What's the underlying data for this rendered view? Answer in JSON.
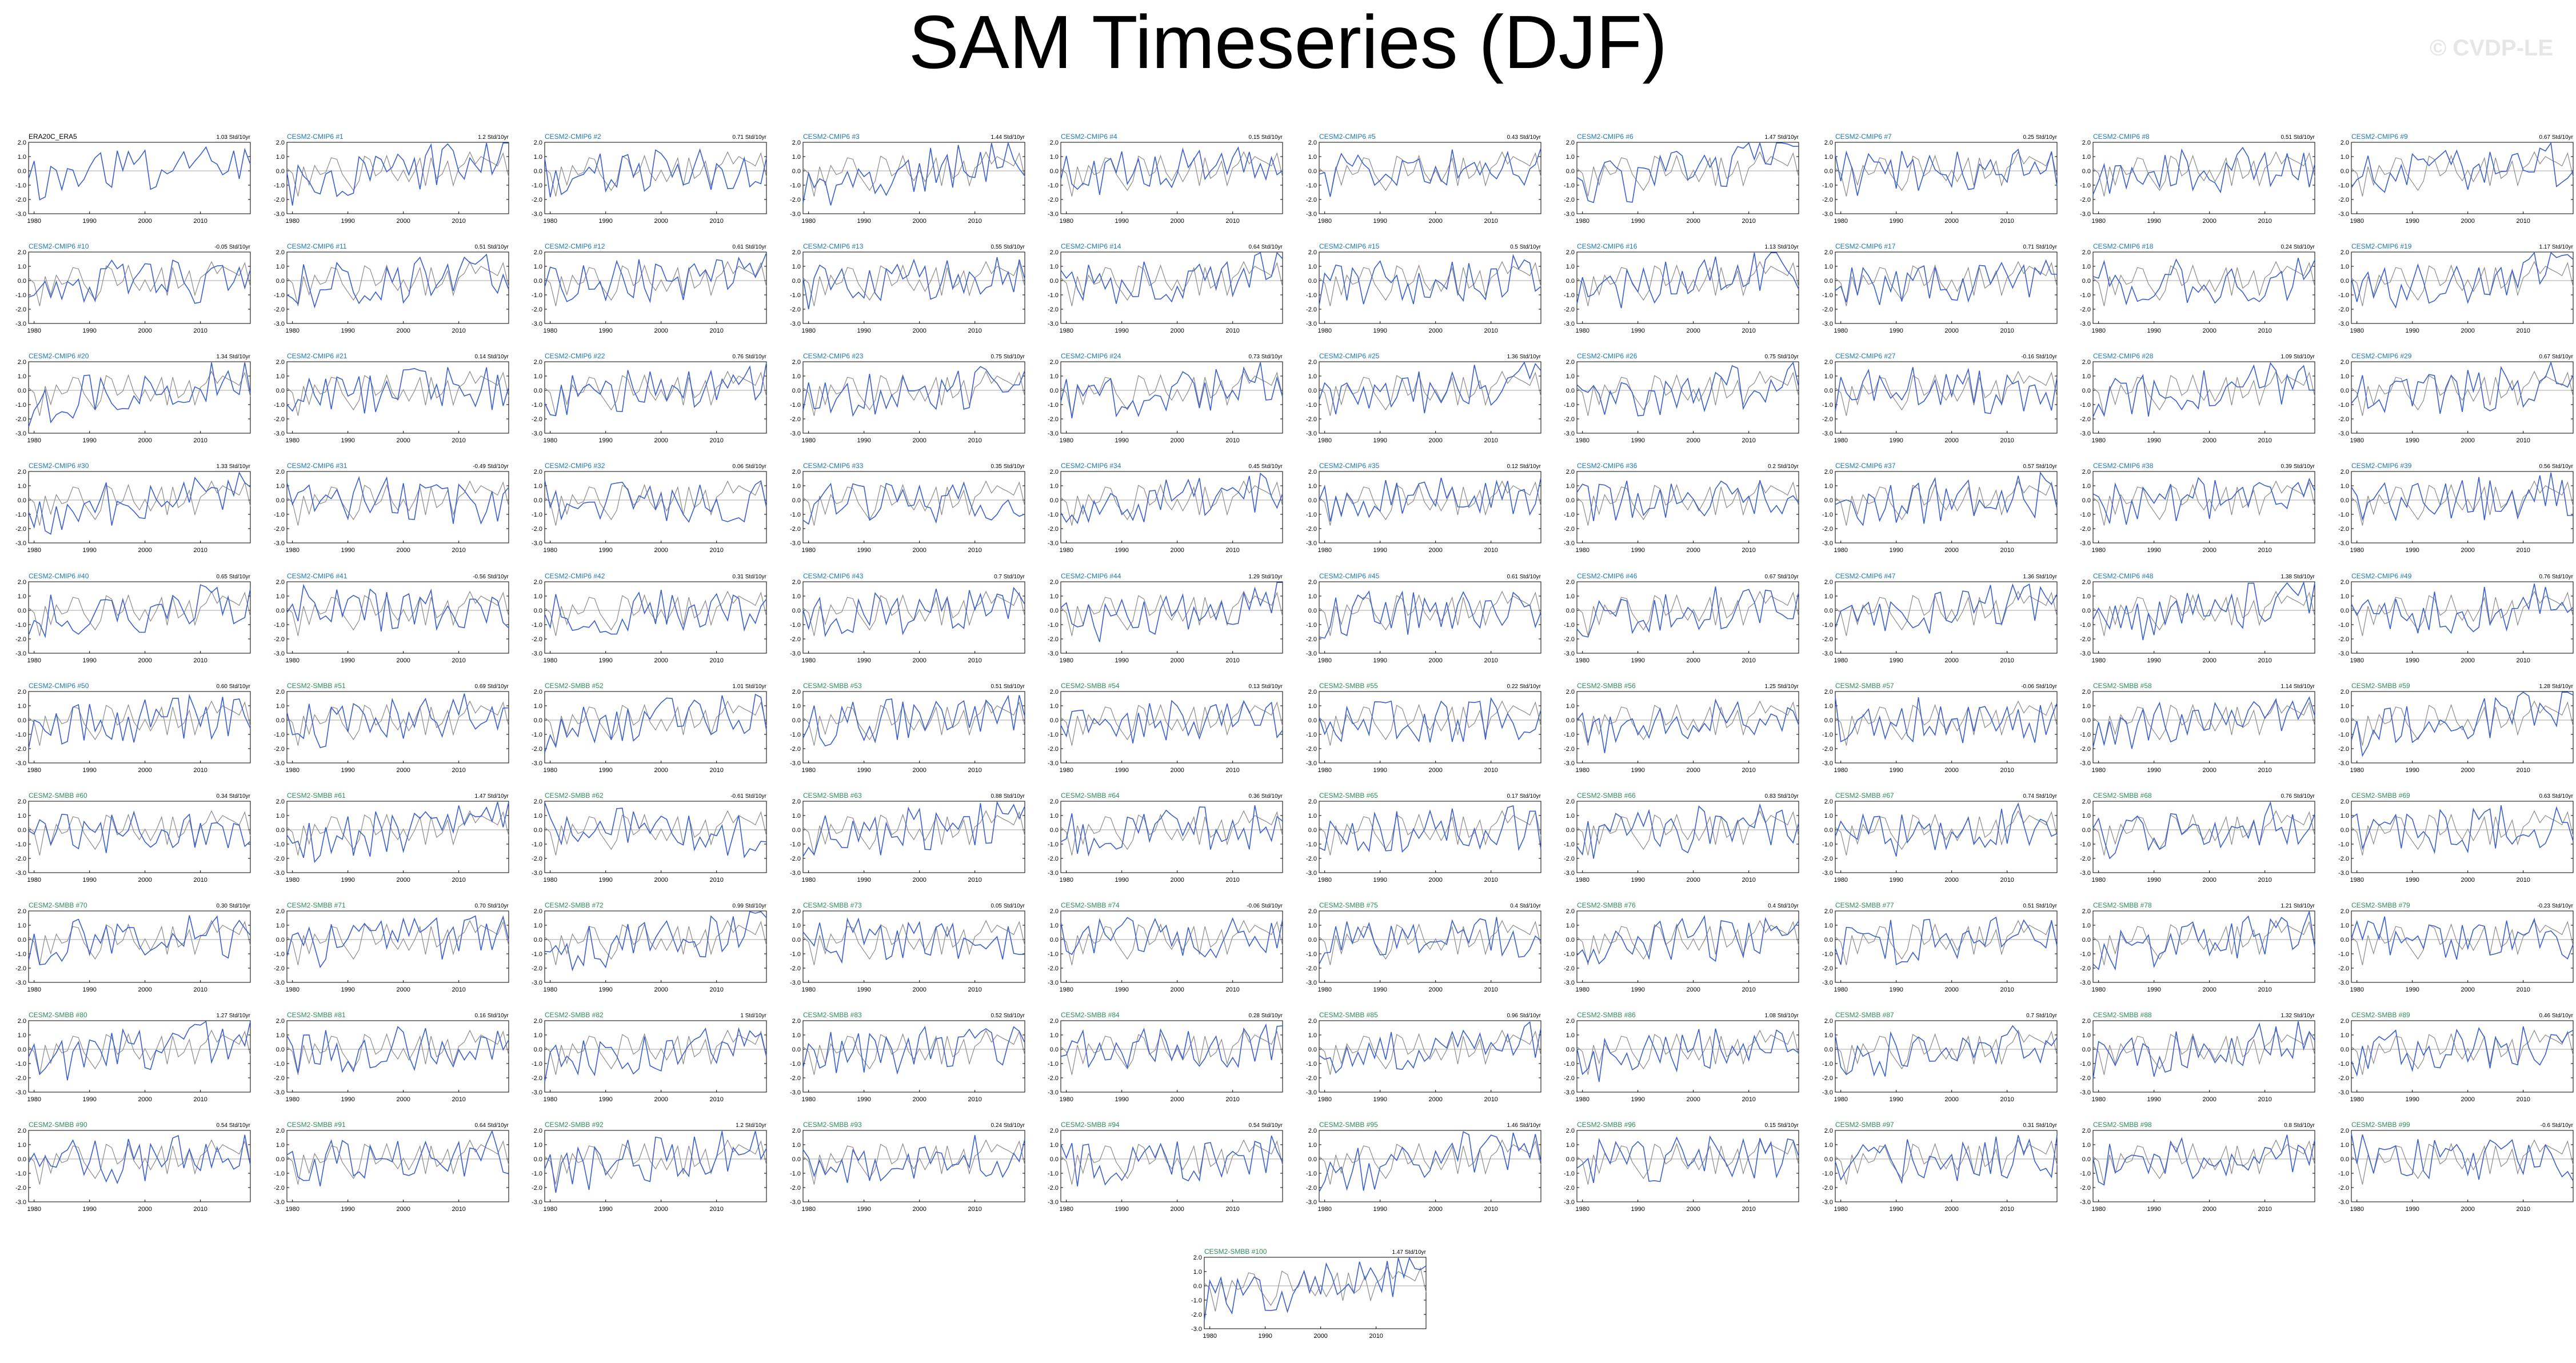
{
  "title": "SAM Timeseries (DJF)",
  "watermark": "© CVDP-LE",
  "colors": {
    "obs": "#000000",
    "model": "#3a5fcd",
    "reference": "#8a8a8a",
    "cmip6_title": "#1f78b4",
    "smbb_title": "#2e8b57"
  },
  "chart_data": {
    "type": "line",
    "x_range": [
      1979,
      2019
    ],
    "x_ticks": [
      "1980",
      "1990",
      "2000",
      "2010"
    ],
    "y_ticks": [
      "2.0",
      "1.0",
      "0.0",
      "-1.0",
      "-2.0",
      "-3.0"
    ],
    "ylim": [
      -3.0,
      2.0
    ],
    "trend_units": "Std/10yr",
    "panels": [
      {
        "label": "ERA20C_ERA5",
        "trend": "1.03 Std/10yr"
      },
      {
        "label": "CESM2-CMIP6 #1",
        "trend": "1.2 Std/10yr"
      },
      {
        "label": "CESM2-CMIP6 #2",
        "trend": "0.71 Std/10yr"
      },
      {
        "label": "CESM2-CMIP6 #3",
        "trend": "1.44 Std/10yr"
      },
      {
        "label": "CESM2-CMIP6 #4",
        "trend": "0.15 Std/10yr"
      },
      {
        "label": "CESM2-CMIP6 #5",
        "trend": "0.43 Std/10yr"
      },
      {
        "label": "CESM2-CMIP6 #6",
        "trend": "1.47 Std/10yr"
      },
      {
        "label": "CESM2-CMIP6 #7",
        "trend": "0.25 Std/10yr"
      },
      {
        "label": "CESM2-CMIP6 #8",
        "trend": "0.51 Std/10yr"
      },
      {
        "label": "CESM2-CMIP6 #9",
        "trend": "0.67 Std/10yr"
      },
      {
        "label": "CESM2-CMIP6 #10",
        "trend": "-0.05 Std/10yr"
      },
      {
        "label": "CESM2-CMIP6 #11",
        "trend": "0.51 Std/10yr"
      },
      {
        "label": "CESM2-CMIP6 #12",
        "trend": "0.61 Std/10yr"
      },
      {
        "label": "CESM2-CMIP6 #13",
        "trend": "0.55 Std/10yr"
      },
      {
        "label": "CESM2-CMIP6 #14",
        "trend": "0.64 Std/10yr"
      },
      {
        "label": "CESM2-CMIP6 #15",
        "trend": "0.5 Std/10yr"
      },
      {
        "label": "CESM2-CMIP6 #16",
        "trend": "1.13 Std/10yr"
      },
      {
        "label": "CESM2-CMIP6 #17",
        "trend": "0.71 Std/10yr"
      },
      {
        "label": "CESM2-CMIP6 #18",
        "trend": "0.24 Std/10yr"
      },
      {
        "label": "CESM2-CMIP6 #19",
        "trend": "1.17 Std/10yr"
      },
      {
        "label": "CESM2-CMIP6 #20",
        "trend": "1.34 Std/10yr"
      },
      {
        "label": "CESM2-CMIP6 #21",
        "trend": "0.14 Std/10yr"
      },
      {
        "label": "CESM2-CMIP6 #22",
        "trend": "0.76 Std/10yr"
      },
      {
        "label": "CESM2-CMIP6 #23",
        "trend": "0.75 Std/10yr"
      },
      {
        "label": "CESM2-CMIP6 #24",
        "trend": "0.73 Std/10yr"
      },
      {
        "label": "CESM2-CMIP6 #25",
        "trend": "1.36 Std/10yr"
      },
      {
        "label": "CESM2-CMIP6 #26",
        "trend": "0.75 Std/10yr"
      },
      {
        "label": "CESM2-CMIP6 #27",
        "trend": "-0.16 Std/10yr"
      },
      {
        "label": "CESM2-CMIP6 #28",
        "trend": "1.09 Std/10yr"
      },
      {
        "label": "CESM2-CMIP6 #29",
        "trend": "0.67 Std/10yr"
      },
      {
        "label": "CESM2-CMIP6 #30",
        "trend": "1.33 Std/10yr"
      },
      {
        "label": "CESM2-CMIP6 #31",
        "trend": "-0.49 Std/10yr"
      },
      {
        "label": "CESM2-CMIP6 #32",
        "trend": "0.06 Std/10yr"
      },
      {
        "label": "CESM2-CMIP6 #33",
        "trend": "0.35 Std/10yr"
      },
      {
        "label": "CESM2-CMIP6 #34",
        "trend": "0.45 Std/10yr"
      },
      {
        "label": "CESM2-CMIP6 #35",
        "trend": "0.12 Std/10yr"
      },
      {
        "label": "CESM2-CMIP6 #36",
        "trend": "0.2 Std/10yr"
      },
      {
        "label": "CESM2-CMIP6 #37",
        "trend": "0.57 Std/10yr"
      },
      {
        "label": "CESM2-CMIP6 #38",
        "trend": "0.39 Std/10yr"
      },
      {
        "label": "CESM2-CMIP6 #39",
        "trend": "0.56 Std/10yr"
      },
      {
        "label": "CESM2-CMIP6 #40",
        "trend": "0.65 Std/10yr"
      },
      {
        "label": "CESM2-CMIP6 #41",
        "trend": "-0.56 Std/10yr"
      },
      {
        "label": "CESM2-CMIP6 #42",
        "trend": "0.31 Std/10yr"
      },
      {
        "label": "CESM2-CMIP6 #43",
        "trend": "0.7 Std/10yr"
      },
      {
        "label": "CESM2-CMIP6 #44",
        "trend": "1.29 Std/10yr"
      },
      {
        "label": "CESM2-CMIP6 #45",
        "trend": "0.61 Std/10yr"
      },
      {
        "label": "CESM2-CMIP6 #46",
        "trend": "0.67 Std/10yr"
      },
      {
        "label": "CESM2-CMIP6 #47",
        "trend": "1.36 Std/10yr"
      },
      {
        "label": "CESM2-CMIP6 #48",
        "trend": "1.38 Std/10yr"
      },
      {
        "label": "CESM2-CMIP6 #49",
        "trend": "0.76 Std/10yr"
      },
      {
        "label": "CESM2-CMIP6 #50",
        "trend": "0.60 Std/10yr"
      },
      {
        "label": "CESM2-SMBB #51",
        "trend": "0.69 Std/10yr"
      },
      {
        "label": "CESM2-SMBB #52",
        "trend": "1.01 Std/10yr"
      },
      {
        "label": "CESM2-SMBB #53",
        "trend": "0.51 Std/10yr"
      },
      {
        "label": "CESM2-SMBB #54",
        "trend": "0.13 Std/10yr"
      },
      {
        "label": "CESM2-SMBB #55",
        "trend": "0.22 Std/10yr"
      },
      {
        "label": "CESM2-SMBB #56",
        "trend": "1.25 Std/10yr"
      },
      {
        "label": "CESM2-SMBB #57",
        "trend": "-0.06 Std/10yr"
      },
      {
        "label": "CESM2-SMBB #58",
        "trend": "1.14 Std/10yr"
      },
      {
        "label": "CESM2-SMBB #59",
        "trend": "1.28 Std/10yr"
      },
      {
        "label": "CESM2-SMBB #60",
        "trend": "0.34 Std/10yr"
      },
      {
        "label": "CESM2-SMBB #61",
        "trend": "1.47 Std/10yr"
      },
      {
        "label": "CESM2-SMBB #62",
        "trend": "-0.61 Std/10yr"
      },
      {
        "label": "CESM2-SMBB #63",
        "trend": "0.88 Std/10yr"
      },
      {
        "label": "CESM2-SMBB #64",
        "trend": "0.36 Std/10yr"
      },
      {
        "label": "CESM2-SMBB #65",
        "trend": "0.17 Std/10yr"
      },
      {
        "label": "CESM2-SMBB #66",
        "trend": "0.83 Std/10yr"
      },
      {
        "label": "CESM2-SMBB #67",
        "trend": "0.74 Std/10yr"
      },
      {
        "label": "CESM2-SMBB #68",
        "trend": "0.76 Std/10yr"
      },
      {
        "label": "CESM2-SMBB #69",
        "trend": "0.63 Std/10yr"
      },
      {
        "label": "CESM2-SMBB #70",
        "trend": "0.30 Std/10yr"
      },
      {
        "label": "CESM2-SMBB #71",
        "trend": "0.70 Std/10yr"
      },
      {
        "label": "CESM2-SMBB #72",
        "trend": "0.99 Std/10yr"
      },
      {
        "label": "CESM2-SMBB #73",
        "trend": "0.05 Std/10yr"
      },
      {
        "label": "CESM2-SMBB #74",
        "trend": "-0.06 Std/10yr"
      },
      {
        "label": "CESM2-SMBB #75",
        "trend": "0.4 Std/10yr"
      },
      {
        "label": "CESM2-SMBB #76",
        "trend": "0.4 Std/10yr"
      },
      {
        "label": "CESM2-SMBB #77",
        "trend": "0.51 Std/10yr"
      },
      {
        "label": "CESM2-SMBB #78",
        "trend": "1.21 Std/10yr"
      },
      {
        "label": "CESM2-SMBB #79",
        "trend": "-0.23 Std/10yr"
      },
      {
        "label": "CESM2-SMBB #80",
        "trend": "1.27 Std/10yr"
      },
      {
        "label": "CESM2-SMBB #81",
        "trend": "0.16 Std/10yr"
      },
      {
        "label": "CESM2-SMBB #82",
        "trend": "1 Std/10yr"
      },
      {
        "label": "CESM2-SMBB #83",
        "trend": "0.52 Std/10yr"
      },
      {
        "label": "CESM2-SMBB #84",
        "trend": "0.28 Std/10yr"
      },
      {
        "label": "CESM2-SMBB #85",
        "trend": "0.96 Std/10yr"
      },
      {
        "label": "CESM2-SMBB #86",
        "trend": "1.08 Std/10yr"
      },
      {
        "label": "CESM2-SMBB #87",
        "trend": "0.7 Std/10yr"
      },
      {
        "label": "CESM2-SMBB #88",
        "trend": "1.32 Std/10yr"
      },
      {
        "label": "CESM2-SMBB #89",
        "trend": "0.46 Std/10yr"
      },
      {
        "label": "CESM2-SMBB #90",
        "trend": "0.54 Std/10yr"
      },
      {
        "label": "CESM2-SMBB #91",
        "trend": "0.64 Std/10yr"
      },
      {
        "label": "CESM2-SMBB #92",
        "trend": "1.2 Std/10yr"
      },
      {
        "label": "CESM2-SMBB #93",
        "trend": "0.24 Std/10yr"
      },
      {
        "label": "CESM2-SMBB #94",
        "trend": "0.54 Std/10yr"
      },
      {
        "label": "CESM2-SMBB #95",
        "trend": "1.46 Std/10yr"
      },
      {
        "label": "CESM2-SMBB #96",
        "trend": "0.15 Std/10yr"
      },
      {
        "label": "CESM2-SMBB #97",
        "trend": "0.31 Std/10yr"
      },
      {
        "label": "CESM2-SMBB #98",
        "trend": "0.8 Std/10yr"
      },
      {
        "label": "CESM2-SMBB #99",
        "trend": "-0.6 Std/10yr"
      },
      {
        "label": "CESM2-SMBB #100",
        "trend": "1.47 Std/10yr"
      }
    ]
  }
}
